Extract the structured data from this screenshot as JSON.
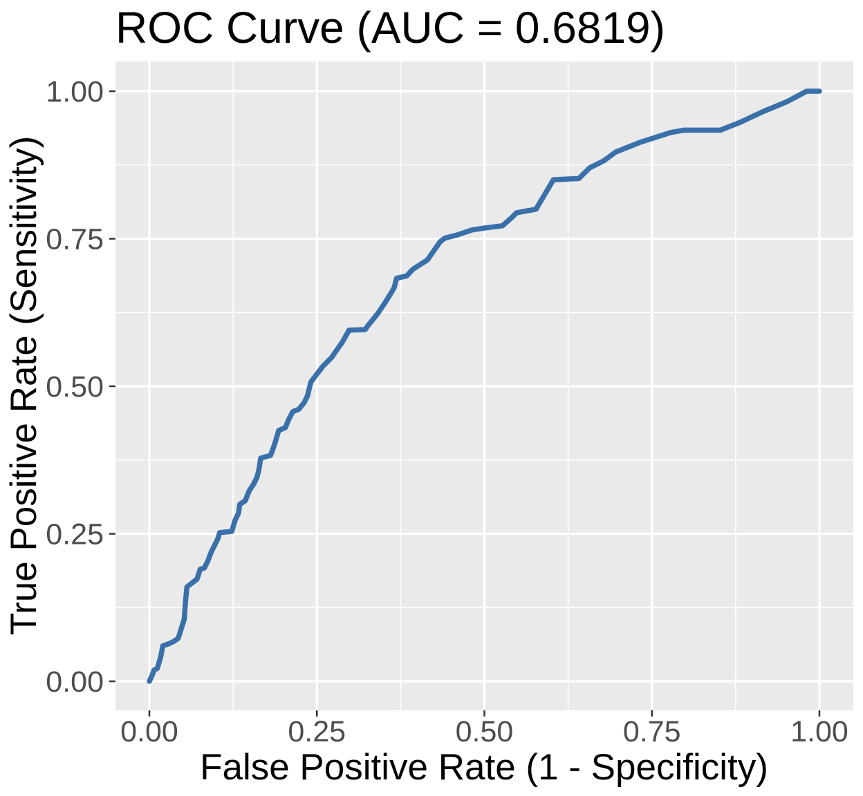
{
  "chart_data": {
    "type": "line",
    "title": "ROC Curve (AUC = 0.6819)",
    "auc": 0.6819,
    "xlabel": "False Positive Rate (1 - Specificity)",
    "ylabel": "True Positive Rate (Sensitivity)",
    "xlim": [
      0,
      1
    ],
    "ylim": [
      0,
      1
    ],
    "grid": "on",
    "legend_position": "none",
    "x_ticks": {
      "values": [
        0,
        0.25,
        0.5,
        0.75,
        1
      ],
      "labels": [
        "0.00",
        "0.25",
        "0.50",
        "0.75",
        "1.00"
      ]
    },
    "y_ticks": {
      "values": [
        0,
        0.25,
        0.5,
        0.75,
        1
      ],
      "labels": [
        "0.00",
        "0.25",
        "0.50",
        "0.75",
        "1.00"
      ]
    },
    "x_minor_ticks": [
      0.125,
      0.375,
      0.625,
      0.875
    ],
    "y_minor_ticks": [
      0.125,
      0.375,
      0.625,
      0.875
    ],
    "style": {
      "panel_background": "#EAEAEA",
      "grid_color": "#FFFFFF",
      "line_color": "#3A70AA",
      "tick_mark_color": "#333333",
      "tick_label_color": "#4D4D4D",
      "text_color": "#000000"
    },
    "series": [
      {
        "name": "ROC curve",
        "points": [
          [
            0.0,
            0.0
          ],
          [
            0.004,
            0.01
          ],
          [
            0.007,
            0.019
          ],
          [
            0.012,
            0.022
          ],
          [
            0.017,
            0.042
          ],
          [
            0.02,
            0.06
          ],
          [
            0.03,
            0.064
          ],
          [
            0.037,
            0.068
          ],
          [
            0.043,
            0.073
          ],
          [
            0.047,
            0.087
          ],
          [
            0.052,
            0.105
          ],
          [
            0.054,
            0.136
          ],
          [
            0.056,
            0.16
          ],
          [
            0.064,
            0.167
          ],
          [
            0.071,
            0.173
          ],
          [
            0.076,
            0.19
          ],
          [
            0.082,
            0.192
          ],
          [
            0.087,
            0.203
          ],
          [
            0.092,
            0.218
          ],
          [
            0.102,
            0.241
          ],
          [
            0.105,
            0.252
          ],
          [
            0.123,
            0.254
          ],
          [
            0.128,
            0.273
          ],
          [
            0.133,
            0.285
          ],
          [
            0.135,
            0.3
          ],
          [
            0.143,
            0.306
          ],
          [
            0.149,
            0.323
          ],
          [
            0.156,
            0.335
          ],
          [
            0.161,
            0.347
          ],
          [
            0.164,
            0.362
          ],
          [
            0.166,
            0.378
          ],
          [
            0.181,
            0.383
          ],
          [
            0.187,
            0.402
          ],
          [
            0.193,
            0.425
          ],
          [
            0.203,
            0.43
          ],
          [
            0.208,
            0.444
          ],
          [
            0.214,
            0.457
          ],
          [
            0.223,
            0.461
          ],
          [
            0.231,
            0.472
          ],
          [
            0.236,
            0.484
          ],
          [
            0.241,
            0.507
          ],
          [
            0.247,
            0.516
          ],
          [
            0.259,
            0.534
          ],
          [
            0.272,
            0.549
          ],
          [
            0.288,
            0.575
          ],
          [
            0.298,
            0.595
          ],
          [
            0.322,
            0.596
          ],
          [
            0.327,
            0.604
          ],
          [
            0.34,
            0.622
          ],
          [
            0.352,
            0.642
          ],
          [
            0.365,
            0.666
          ],
          [
            0.369,
            0.683
          ],
          [
            0.384,
            0.687
          ],
          [
            0.393,
            0.698
          ],
          [
            0.415,
            0.714
          ],
          [
            0.434,
            0.745
          ],
          [
            0.441,
            0.751
          ],
          [
            0.458,
            0.756
          ],
          [
            0.482,
            0.765
          ],
          [
            0.5,
            0.768
          ],
          [
            0.527,
            0.772
          ],
          [
            0.541,
            0.786
          ],
          [
            0.548,
            0.794
          ],
          [
            0.577,
            0.8
          ],
          [
            0.603,
            0.85
          ],
          [
            0.641,
            0.852
          ],
          [
            0.657,
            0.87
          ],
          [
            0.678,
            0.882
          ],
          [
            0.696,
            0.897
          ],
          [
            0.734,
            0.914
          ],
          [
            0.778,
            0.93
          ],
          [
            0.797,
            0.934
          ],
          [
            0.852,
            0.934
          ],
          [
            0.881,
            0.947
          ],
          [
            0.915,
            0.965
          ],
          [
            0.951,
            0.982
          ],
          [
            0.981,
            1.0
          ],
          [
            1.0,
            1.0
          ]
        ]
      }
    ]
  }
}
